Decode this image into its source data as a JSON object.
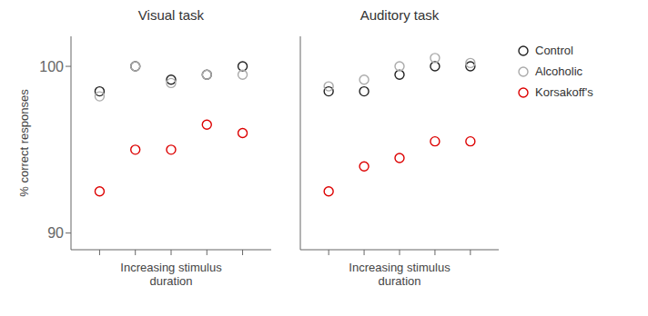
{
  "chart_data": [
    {
      "type": "scatter",
      "title": "Visual task",
      "x": [
        1,
        2,
        3,
        4,
        5
      ],
      "xlim": [
        0.2,
        5.8
      ],
      "xticks": [
        1,
        2,
        3,
        4,
        5
      ],
      "ylim": [
        89.0,
        101.8
      ],
      "yticks": [
        90,
        100
      ],
      "xlabel": "Increasing stimulus\nduration",
      "ylabel": "% correct responses",
      "tick_labels": "y",
      "grid": false,
      "marker": "open_circle",
      "series": [
        {
          "name": "Control",
          "color": "#222222",
          "values": [
            98.5,
            100.0,
            99.2,
            99.5,
            100.0
          ]
        },
        {
          "name": "Alcoholic",
          "color": "#aaaaaa",
          "values": [
            98.2,
            100.0,
            99.0,
            99.5,
            99.5
          ]
        },
        {
          "name": "Korsakoff's",
          "color": "#dd0000",
          "values": [
            92.5,
            95.0,
            95.0,
            96.5,
            96.0
          ]
        }
      ]
    },
    {
      "type": "scatter",
      "title": "Auditory task",
      "x": [
        1,
        2,
        3,
        4,
        5
      ],
      "xlim": [
        0.2,
        5.8
      ],
      "xticks": [
        1,
        2,
        3,
        4,
        5
      ],
      "ylim": [
        89.0,
        101.8
      ],
      "yticks": [
        90,
        100
      ],
      "xlabel": "Increasing stimulus\nduration",
      "tick_labels": false,
      "grid": false,
      "legend": "right",
      "marker": "open_circle",
      "series": [
        {
          "name": "Control",
          "color": "#222222",
          "values": [
            98.5,
            98.5,
            99.5,
            100.0,
            100.0
          ]
        },
        {
          "name": "Alcoholic",
          "color": "#aaaaaa",
          "values": [
            98.8,
            99.2,
            100.0,
            100.5,
            100.2
          ]
        },
        {
          "name": "Korsakoff's",
          "color": "#dd0000",
          "values": [
            92.5,
            94.0,
            94.5,
            95.5,
            95.5
          ]
        }
      ]
    }
  ]
}
